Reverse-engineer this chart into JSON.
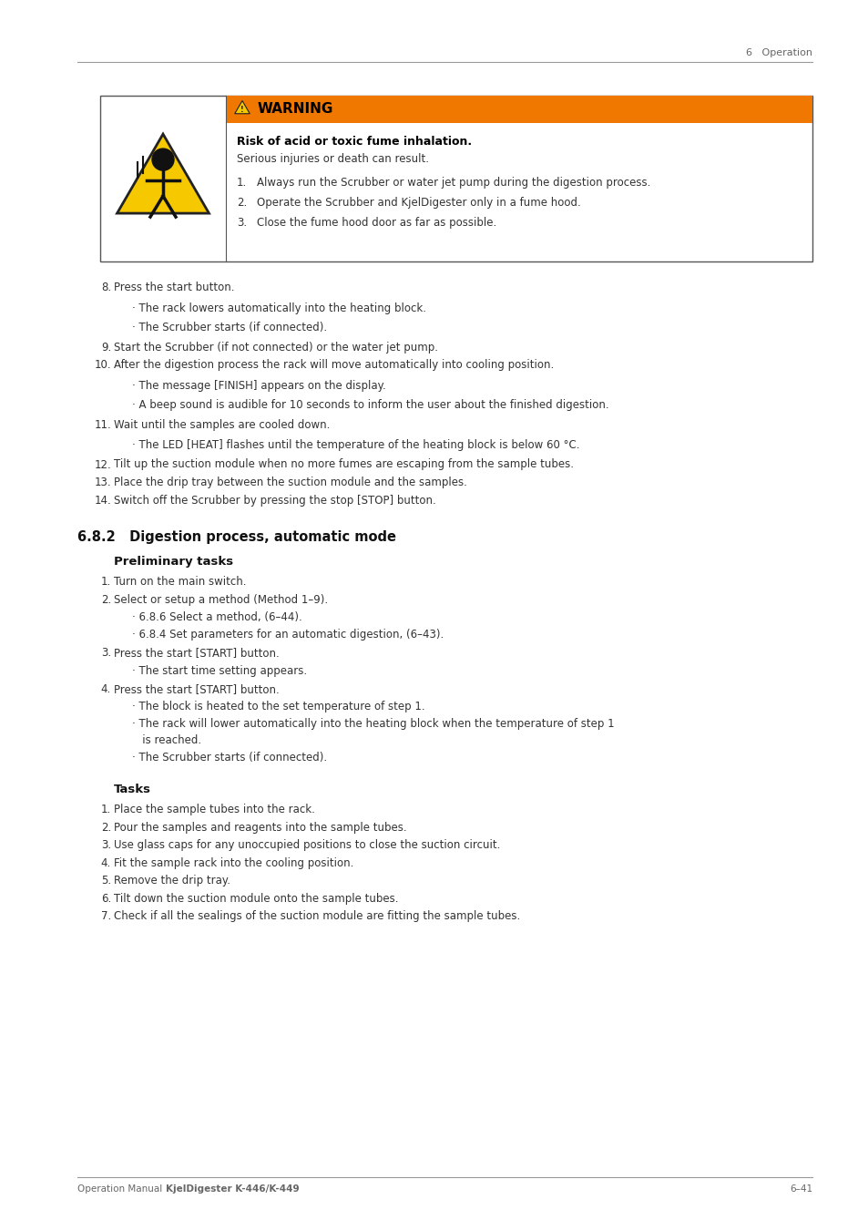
{
  "page_width": 9.54,
  "page_height": 13.5,
  "dpi": 100,
  "bg_color": "#ffffff",
  "text_color": "#333333",
  "header_text": "6   Operation",
  "footer_left_normal": "Operation Manual",
  "footer_left_bold": "KjelDigester K-446/K-449",
  "footer_right": "6–41",
  "orange_color": "#F07800",
  "warning_title": "WARNING",
  "warning_bold": "Risk of acid or toxic fume inhalation.",
  "warning_sub": "Serious injuries or death can result.",
  "warning_items": [
    "Always run the Scrubber or water jet pump during the digestion process.",
    "Operate the Scrubber and KjelDigester only in a fume hood.",
    "Close the fume hood door as far as possible."
  ],
  "items_8_14": [
    {
      "num": "8.",
      "text": "Press the start button.",
      "subs": [
        "· The rack lowers automatically into the heating block.",
        "· The Scrubber starts (if connected)."
      ]
    },
    {
      "num": "9.",
      "text": "Start the Scrubber (if not connected) or the water jet pump.",
      "subs": []
    },
    {
      "num": "10.",
      "text": "After the digestion process the rack will move automatically into cooling position.",
      "subs": [
        "· The message [FINISH] appears on the display.",
        "· A beep sound is audible for 10 seconds to inform the user about the finished digestion."
      ]
    },
    {
      "num": "11.",
      "text": "Wait until the samples are cooled down.",
      "subs": [
        "· The LED [HEAT] flashes until the temperature of the heating block is below 60 °C."
      ]
    },
    {
      "num": "12.",
      "text": "Tilt up the suction module when no more fumes are escaping from the sample tubes.",
      "subs": []
    },
    {
      "num": "13.",
      "text": "Place the drip tray between the suction module and the samples.",
      "subs": []
    },
    {
      "num": "14.",
      "text": "Switch off the Scrubber by pressing the stop [STOP] button.",
      "subs": []
    }
  ],
  "section_title": "6.8.2   Digestion process, automatic mode",
  "prelim_title": "Preliminary tasks",
  "prelim_items": [
    {
      "num": "1.",
      "text": "Turn on the main switch.",
      "subs": []
    },
    {
      "num": "2.",
      "text": "Select or setup a method (Method 1–9).",
      "subs": [
        "· 6.8.6 Select a method, (6–44).",
        "· 6.8.4 Set parameters for an automatic digestion, (6–43)."
      ]
    },
    {
      "num": "3.",
      "text": "Press the start [START] button.",
      "subs": [
        "· The start time setting appears."
      ]
    },
    {
      "num": "4.",
      "text": "Press the start [START] button.",
      "subs": [
        "· The block is heated to the set temperature of step 1.",
        "· The rack will lower automatically into the heating block when the temperature of step 1\n   is reached.",
        "· The Scrubber starts (if connected)."
      ]
    }
  ],
  "tasks_title": "Tasks",
  "tasks_items": [
    {
      "num": "1.",
      "text": "Place the sample tubes into the rack."
    },
    {
      "num": "2.",
      "text": "Pour the samples and reagents into the sample tubes."
    },
    {
      "num": "3.",
      "text": "Use glass caps for any unoccupied positions to close the suction circuit."
    },
    {
      "num": "4.",
      "text": "Fit the sample rack into the cooling position."
    },
    {
      "num": "5.",
      "text": "Remove the drip tray."
    },
    {
      "num": "6.",
      "text": "Tilt down the suction module onto the sample tubes."
    },
    {
      "num": "7.",
      "text": "Check if all the sealings of the suction module are fitting the sample tubes."
    }
  ]
}
